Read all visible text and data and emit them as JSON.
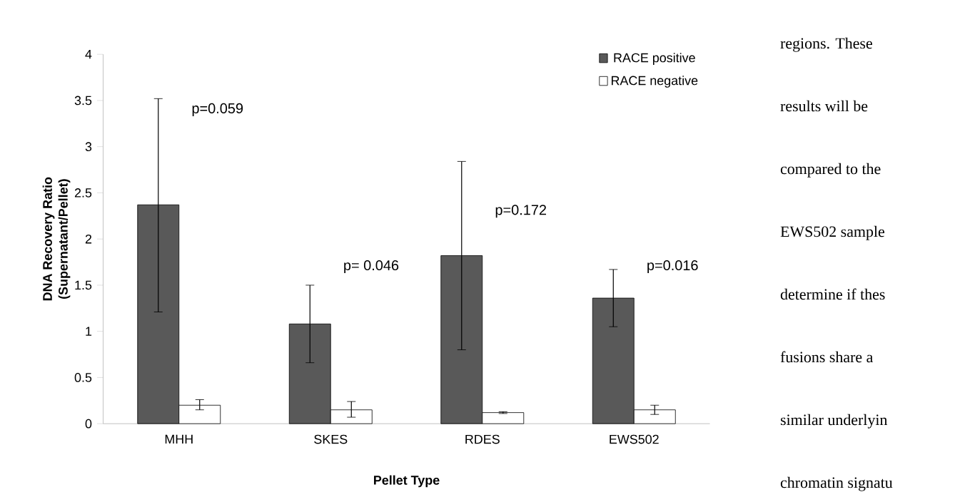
{
  "chart_data": {
    "type": "bar",
    "xlabel": "Pellet Type",
    "ylabel": "DNA Recovery Ratio (Supernatant/Pellet)",
    "categories": [
      "MHH",
      "SKES",
      "RDES",
      "EWS502"
    ],
    "series": [
      {
        "name": "RACE positive",
        "color": "#595959",
        "values": [
          2.37,
          1.08,
          1.82,
          1.36
        ],
        "errors": [
          [
            1.21,
            3.52
          ],
          [
            0.66,
            1.5
          ],
          [
            0.8,
            2.84
          ],
          [
            1.05,
            1.67
          ]
        ]
      },
      {
        "name": "RACE negative",
        "color": "#ffffff",
        "values": [
          0.2,
          0.15,
          0.12,
          0.15
        ],
        "errors": [
          [
            0.15,
            0.26
          ],
          [
            0.07,
            0.24
          ],
          [
            0.11,
            0.13
          ],
          [
            0.1,
            0.2
          ]
        ]
      }
    ],
    "ylim": [
      0,
      4
    ],
    "yticks": [
      0,
      0.5,
      1,
      1.5,
      2,
      2.5,
      3,
      3.5,
      4
    ],
    "grid": false,
    "legend": "top right",
    "annotations": [
      "p=0.059",
      "p= 0.046",
      "p=0.172",
      "p=0.016",
      "regions. These",
      "results will be",
      "compared to the",
      "EWS502 sample",
      "determine if thes",
      "fusions share a",
      "similar underlyin",
      "chromatin signatu"
    ]
  }
}
